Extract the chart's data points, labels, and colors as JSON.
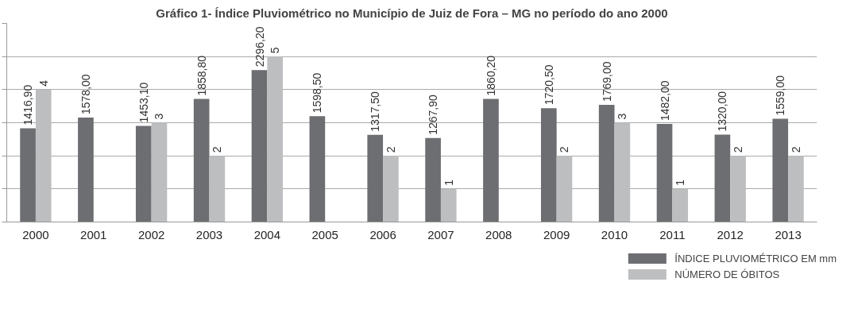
{
  "chart_data": {
    "type": "bar",
    "title": "Gráfico 1- Índice Pluviométrico no Município de Juiz de Fora – MG no período do ano 2000",
    "categories": [
      "2000",
      "2001",
      "2002",
      "2003",
      "2004",
      "2005",
      "2006",
      "2007",
      "2008",
      "2009",
      "2010",
      "2011",
      "2012",
      "2013"
    ],
    "series": [
      {
        "name": "ÍNDICE PLUVIOMÉTRICO EM mm",
        "color": "#6d6e71",
        "values": [
          1416.9,
          1578.0,
          1453.1,
          1858.8,
          2296.2,
          1598.5,
          1317.5,
          1267.9,
          1860.2,
          1720.5,
          1769.0,
          1482.0,
          1320.0,
          1559.0
        ],
        "value_labels": [
          "1416,90",
          "1578,00",
          "1453,10",
          "1858,80",
          "2296,20",
          "1598,50",
          "1317,50",
          "1267,90",
          "1860,20",
          "1720,50",
          "1769,00",
          "1482,00",
          "1320,00",
          "1559,00"
        ]
      },
      {
        "name": "NÚMERO DE ÓBITOS",
        "color": "#bcbec0",
        "axis": "y2",
        "values": [
          4,
          null,
          3,
          2,
          5,
          null,
          2,
          1,
          null,
          2,
          3,
          1,
          2,
          2
        ],
        "value_labels": [
          "4",
          null,
          "3",
          "2",
          "5",
          null,
          "2",
          "1",
          null,
          "2",
          "3",
          "1",
          "2",
          "2"
        ]
      }
    ],
    "ylim": [
      0,
      3000
    ],
    "yticks": [
      {
        "value": 0,
        "label": null
      },
      {
        "value": 500,
        "label": null
      },
      {
        "value": 1000,
        "label": null
      },
      {
        "value": 1500,
        "label": null
      },
      {
        "value": 2000,
        "label": null
      },
      {
        "value": 2500,
        "label": null
      },
      {
        "value": 3000,
        "label": null
      }
    ],
    "y2lim": [
      0,
      6
    ],
    "grid": "y",
    "legend": "bottom right",
    "tick_labels": "x"
  }
}
